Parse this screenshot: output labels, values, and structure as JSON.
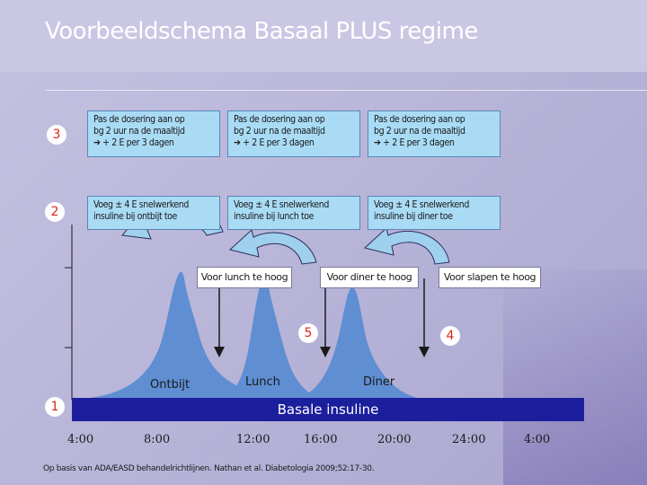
{
  "title": "Voorbeeldschema Basaal PLUS regime",
  "steps": {
    "step1": "1",
    "step2": "2",
    "step3": "3",
    "step4": "4",
    "step5": "5"
  },
  "row3": [
    {
      "line1": "Pas de dosering aan op",
      "line2": "bg 2 uur na de maaltijd",
      "line3": "+ 2 E per 3 dagen"
    },
    {
      "line1": "Pas de dosering aan op",
      "line2": "bg 2 uur na de maaltijd",
      "line3": "+ 2 E per 3 dagen"
    },
    {
      "line1": "Pas de dosering aan op",
      "line2": "bg 2 uur na de maaltijd",
      "line3": "+ 2 E per 3 dagen"
    }
  ],
  "row2": [
    {
      "line1": "Voeg ± 4 E snelwerkend",
      "line2": "insuline bij ontbijt toe"
    },
    {
      "line1": "Voeg ± 4 E snelwerkend",
      "line2": "insuline bij lunch toe"
    },
    {
      "line1": "Voeg ± 4 E snelwerkend",
      "line2": "insuline bij diner toe"
    }
  ],
  "triggers": {
    "lunch": "Voor lunch te hoog",
    "diner": "Voor diner te hoog",
    "slapen": "Voor slapen te hoog"
  },
  "meals": {
    "ontbijt": "Ontbijt",
    "lunch": "Lunch",
    "diner": "Diner"
  },
  "basal_label": "Basale insuline",
  "times": [
    "4:00",
    "8:00",
    "12:00",
    "16:00",
    "20:00",
    "24:00",
    "4:00"
  ],
  "footnote": "Op basis van ADA/EASD behandelrichtlijnen. Nathan et al. Diabetologia 2009;52:17-30.",
  "colors": {
    "peak": "#5f8ed2",
    "box": "#a9dbf5",
    "basal": "#1c1f9c",
    "badge_text": "#d9261c",
    "title": "#ffffff"
  }
}
